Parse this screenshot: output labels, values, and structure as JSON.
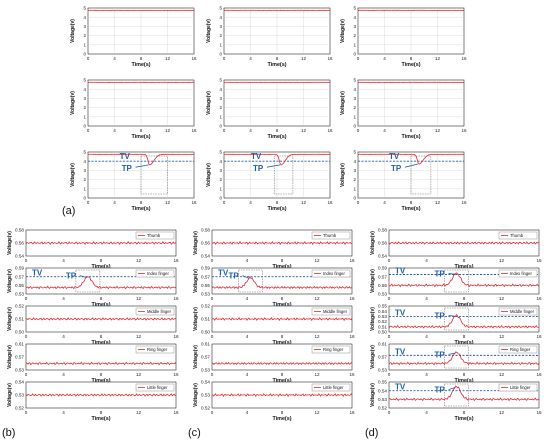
{
  "panel_labels": [
    "(a)",
    "(b)",
    "(c)",
    "(d)"
  ],
  "annotation_labels": {
    "threshold_value": "TV",
    "threshold_point": "TP"
  },
  "colors": {
    "signal": "#e8262c",
    "threshold": "#1f5fa8",
    "frame": "#2a2a2a",
    "annotation": "#1f5fa8"
  },
  "chart_data": [
    {
      "type": "line",
      "panel": "(a)",
      "grid": "3x3",
      "xlabel": "Time(s)",
      "ylabel": "Voltage(v)",
      "xlim": [
        0,
        16
      ],
      "ylim": [
        0,
        5
      ],
      "xticks": [
        "0",
        "4",
        "8",
        "12",
        "16"
      ],
      "yticks": [
        "0",
        "1",
        "2",
        "3",
        "4",
        "5"
      ],
      "grid_lines": true,
      "baseline": 4.75,
      "rows": [
        {
          "dip": null
        },
        {
          "dip": null
        },
        {
          "dip": {
            "threshold": 4,
            "columns": [
              {
                "center": 9.3,
                "minimum": 3.6,
                "window": [
                  8,
                  12
                ]
              },
              {
                "center": 8.6,
                "minimum": 3.6,
                "window": [
                  7.6,
                  10.4
                ]
              },
              {
                "center": 9.2,
                "minimum": 3.7,
                "window": [
                  8,
                  11
                ]
              }
            ]
          }
        }
      ]
    },
    {
      "type": "line",
      "panel": "(b)",
      "xlabel": "Time(s)",
      "ylabel": "Voltage(v)",
      "xlim": [
        0,
        16
      ],
      "xticks": [
        "0",
        "4",
        "8",
        "12",
        "16"
      ],
      "legend_position": "top-right",
      "rows": [
        {
          "legend": "Thumb",
          "ylim": [
            0.54,
            0.58
          ],
          "yticks": [
            "0.54",
            "0.56",
            "0.58"
          ],
          "baseline": 0.56
        },
        {
          "legend": "Index finger",
          "ylim": [
            0.53,
            0.59
          ],
          "yticks": [
            "0.53",
            "0.55",
            "0.57",
            "0.59"
          ],
          "baseline": 0.545,
          "peak": {
            "center": 6.6,
            "height": 0.57
          },
          "threshold": 0.57
        },
        {
          "legend": "Middle finger",
          "ylim": [
            0.5,
            0.52
          ],
          "yticks": [
            "0.50",
            "0.51",
            "0.52"
          ],
          "baseline": 0.51
        },
        {
          "legend": "Ring finger",
          "ylim": [
            0.53,
            0.61
          ],
          "yticks": [
            "0.53",
            "0.57",
            "0.61"
          ],
          "baseline": 0.55
        },
        {
          "legend": "Little finger",
          "ylim": [
            0.52,
            0.54
          ],
          "yticks": [
            "0.52",
            "0.53",
            "0.54"
          ],
          "baseline": 0.53
        }
      ]
    },
    {
      "type": "line",
      "panel": "(c)",
      "xlabel": "Time(s)",
      "ylabel": "Voltage(v)",
      "xlim": [
        0,
        16
      ],
      "xticks": [
        "0",
        "4",
        "8",
        "12",
        "16"
      ],
      "legend_position": "top-right",
      "rows": [
        {
          "legend": "Thumb",
          "ylim": [
            0.54,
            0.58
          ],
          "yticks": [
            "0.54",
            "0.56",
            "0.58"
          ],
          "baseline": 0.56
        },
        {
          "legend": "Index finger",
          "ylim": [
            0.53,
            0.59
          ],
          "yticks": [
            "0.53",
            "0.55",
            "0.57",
            "0.59"
          ],
          "baseline": 0.545,
          "peak": {
            "center": 4.4,
            "height": 0.568
          },
          "threshold": 0.57
        },
        {
          "legend": "Middle finger",
          "ylim": [
            0.5,
            0.52
          ],
          "yticks": [
            "0.50",
            "0.51",
            "0.52"
          ],
          "baseline": 0.51
        },
        {
          "legend": "Ring finger",
          "ylim": [
            0.53,
            0.61
          ],
          "yticks": [
            "0.53",
            "0.57",
            "0.61"
          ],
          "baseline": 0.55
        },
        {
          "legend": "Little finger",
          "ylim": [
            0.52,
            0.54
          ],
          "yticks": [
            "0.52",
            "0.53",
            "0.54"
          ],
          "baseline": 0.53
        }
      ]
    },
    {
      "type": "line",
      "panel": "(d)",
      "xlabel": "Time(s)",
      "ylabel": "Voltage(v)",
      "xlim": [
        0,
        16
      ],
      "xticks": [
        "0",
        "4",
        "8",
        "12",
        "16"
      ],
      "legend_position": "top-right",
      "rows": [
        {
          "legend": "Thumb",
          "ylim": [
            0.54,
            0.58
          ],
          "yticks": [
            "0.54",
            "0.56",
            "0.58"
          ],
          "baseline": 0.56
        },
        {
          "legend": "Index finger",
          "ylim": [
            0.53,
            0.59
          ],
          "yticks": [
            "0.53",
            "0.55",
            "0.57",
            "0.59"
          ],
          "baseline": 0.55,
          "peak": {
            "center": 7.2,
            "height": 0.578
          },
          "threshold": 0.575
        },
        {
          "legend": "Middle finger",
          "ylim": [
            0.5,
            0.55
          ],
          "yticks": [
            "0.50",
            "0.51",
            "0.52",
            "0.53",
            "0.54",
            "0.55"
          ],
          "baseline": 0.51,
          "peak": {
            "center": 7.2,
            "height": 0.532
          },
          "threshold": 0.53
        },
        {
          "legend": "Ring finger",
          "ylim": [
            0.53,
            0.61
          ],
          "yticks": [
            "0.53",
            "0.57",
            "0.61"
          ],
          "baseline": 0.55,
          "peak": {
            "center": 7.2,
            "height": 0.585
          },
          "threshold": 0.575
        },
        {
          "legend": "Little finger",
          "ylim": [
            0.52,
            0.55
          ],
          "yticks": [
            "0.52",
            "0.53",
            "0.54",
            "0.55"
          ],
          "baseline": 0.53,
          "peak": {
            "center": 7.2,
            "height": 0.545
          },
          "threshold": 0.54
        }
      ]
    }
  ]
}
